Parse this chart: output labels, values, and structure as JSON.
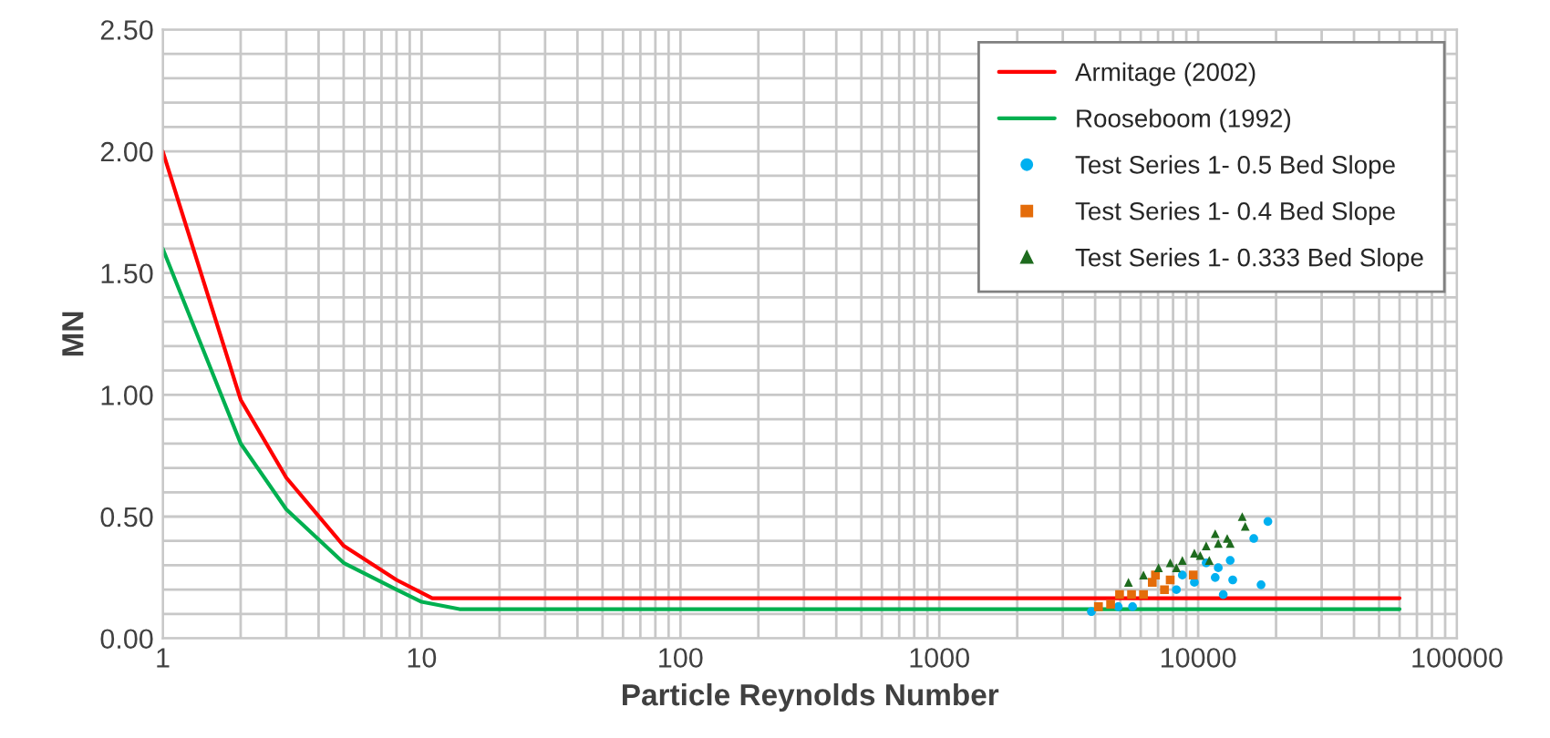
{
  "chart_data": {
    "type": "line",
    "xlabel": "Particle Reynolds Number",
    "ylabel": "MN",
    "log": "x",
    "xlim": [
      1,
      100000
    ],
    "xticks": [
      1,
      10,
      100,
      1000,
      10000,
      100000
    ],
    "ylim": [
      0,
      2.5
    ],
    "yticks": [
      {
        "value": 0,
        "label": "0.00"
      },
      {
        "value": 0.5,
        "label": "0.50"
      },
      {
        "value": 1.0,
        "label": "1.00"
      },
      {
        "value": 1.5,
        "label": "1.50"
      },
      {
        "value": 2.0,
        "label": "2.00"
      },
      {
        "value": 2.5,
        "label": "2.50"
      }
    ],
    "grid": true,
    "legend": "top right",
    "series": [
      {
        "name": "Armitage (2002)",
        "color": "#ff0000",
        "x": [
          1,
          2,
          3,
          5,
          8,
          11,
          60000
        ],
        "values": [
          2.0,
          0.98,
          0.66,
          0.38,
          0.24,
          0.165,
          0.165
        ]
      },
      {
        "name": "Rooseboom (1992)",
        "color": "#00b050",
        "x": [
          1,
          2,
          3,
          5,
          8,
          10,
          14,
          60000
        ],
        "values": [
          1.6,
          0.8,
          0.53,
          0.31,
          0.2,
          0.15,
          0.12,
          0.12
        ]
      },
      {
        "name": "Test Series 1- 0.5 Bed Slope",
        "type": "scatter",
        "marker": "circle",
        "color": "#00b0f0",
        "x": [
          3870,
          4910,
          5580,
          8240,
          12500,
          17500,
          13600,
          11640,
          10740,
          13300,
          16400,
          18600,
          9670,
          11960,
          8690
        ],
        "values": [
          0.11,
          0.13,
          0.13,
          0.2,
          0.18,
          0.22,
          0.24,
          0.25,
          0.31,
          0.32,
          0.41,
          0.48,
          0.23,
          0.29,
          0.26
        ]
      },
      {
        "name": "Test Series 1- 0.4 Bed Slope",
        "type": "scatter",
        "marker": "square",
        "color": "#e46c0a",
        "x": [
          4120,
          4590,
          4970,
          5530,
          6150,
          7410,
          6650,
          7800,
          9570,
          6840
        ],
        "values": [
          0.13,
          0.14,
          0.18,
          0.18,
          0.18,
          0.2,
          0.23,
          0.24,
          0.26,
          0.26
        ]
      },
      {
        "name": "Test Series 1- 0.333 Bed Slope",
        "type": "scatter",
        "marker": "triangle",
        "color": "#1e6b1e",
        "x": [
          5380,
          6150,
          7030,
          7800,
          8690,
          9670,
          10740,
          11640,
          12950,
          11960,
          13300,
          14800,
          15200,
          10190,
          8240,
          11040
        ],
        "values": [
          0.23,
          0.26,
          0.29,
          0.31,
          0.32,
          0.35,
          0.38,
          0.43,
          0.41,
          0.39,
          0.39,
          0.5,
          0.46,
          0.34,
          0.29,
          0.32
        ]
      }
    ]
  }
}
